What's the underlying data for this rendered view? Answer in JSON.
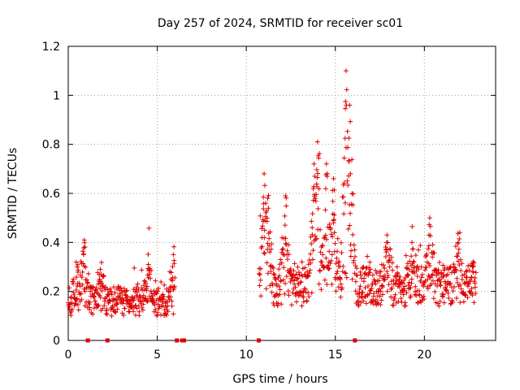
{
  "chart_data": {
    "type": "scatter",
    "title": "Day 257 of 2024, SRMTID for receiver sc01",
    "xlabel": "GPS time / hours",
    "ylabel": "SRMTID / TECUs",
    "xlim": [
      0,
      24
    ],
    "ylim": [
      0,
      1.2
    ],
    "xticks": [
      0,
      5,
      10,
      15,
      20
    ],
    "xtick_labels": [
      "0",
      "5",
      "10",
      "15",
      "20"
    ],
    "yticks": [
      0,
      0.2,
      0.4,
      0.6,
      0.8,
      1.0,
      1.2
    ],
    "ytick_labels": [
      "0",
      "0.2",
      "0.4",
      "0.6",
      "0.8",
      "1",
      "1.2"
    ],
    "grid": true,
    "marker": "+",
    "color": "#e00000",
    "series": [
      {
        "name": "sc01",
        "segments": [
          {
            "x_start": 0.0,
            "x_end": 6.0,
            "baseline": 0.16,
            "spread": 0.06,
            "peaks": [
              [
                0.5,
                0.3
              ],
              [
                0.9,
                0.41
              ],
              [
                1.8,
                0.29
              ],
              [
                4.5,
                0.31
              ],
              [
                5.9,
                0.35
              ]
            ]
          },
          {
            "x_start": 10.7,
            "x_end": 22.9,
            "baseline": 0.22,
            "spread": 0.08,
            "peaks": [
              [
                11.0,
                0.68
              ],
              [
                11.2,
                0.58
              ],
              [
                12.2,
                0.59
              ],
              [
                13.8,
                0.72
              ],
              [
                14.0,
                0.81
              ],
              [
                14.5,
                0.72
              ],
              [
                14.9,
                0.66
              ],
              [
                15.6,
                1.1
              ],
              [
                15.8,
                0.96
              ],
              [
                17.9,
                0.43
              ],
              [
                19.3,
                0.4
              ],
              [
                20.3,
                0.5
              ],
              [
                21.9,
                0.4
              ],
              [
                22.7,
                0.3
              ]
            ]
          }
        ],
        "zero_points": [
          1.1,
          2.2,
          6.1,
          6.4,
          6.5,
          10.7,
          16.1
        ],
        "n_points": 1100
      }
    ]
  }
}
